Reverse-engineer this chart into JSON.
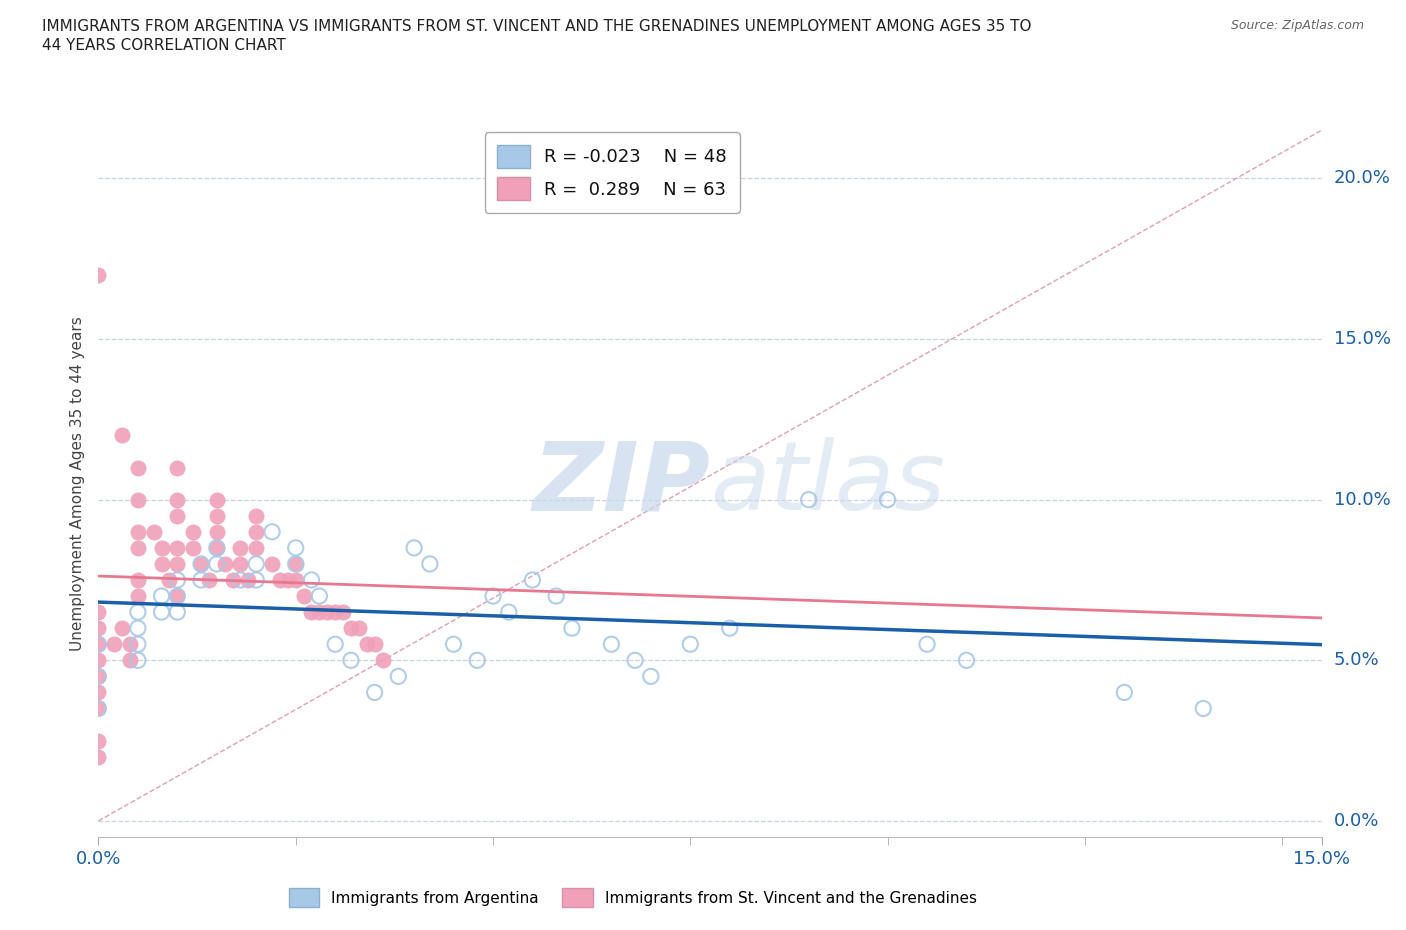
{
  "title": "IMMIGRANTS FROM ARGENTINA VS IMMIGRANTS FROM ST. VINCENT AND THE GRENADINES UNEMPLOYMENT AMONG AGES 35 TO\n44 YEARS CORRELATION CHART",
  "source": "Source: ZipAtlas.com",
  "ylabel_label": "Unemployment Among Ages 35 to 44 years",
  "xlim": [
    0.0,
    0.155
  ],
  "ylim": [
    -0.005,
    0.215
  ],
  "ytick_vals_right": [
    0.0,
    0.05,
    0.1,
    0.15,
    0.2
  ],
  "ytick_labels_right": [
    "0.0%",
    "5.0%",
    "10.0%",
    "15.0%",
    "20.0%"
  ],
  "argentina_color": "#a8c8e8",
  "stv_color": "#f0a0b8",
  "argentina_R": -0.023,
  "argentina_N": 48,
  "stv_R": 0.289,
  "stv_N": 63,
  "argentina_line_color": "#1a5fa8",
  "stv_line_color": "#e87890",
  "diagonal_color": "#e0a0b0",
  "watermark_zip": "ZIP",
  "watermark_atlas": "atlas",
  "argentina_x": [
    0.0,
    0.0,
    0.0,
    0.005,
    0.005,
    0.005,
    0.005,
    0.008,
    0.008,
    0.01,
    0.01,
    0.01,
    0.013,
    0.013,
    0.015,
    0.015,
    0.018,
    0.02,
    0.02,
    0.022,
    0.025,
    0.025,
    0.027,
    0.028,
    0.03,
    0.032,
    0.035,
    0.038,
    0.04,
    0.042,
    0.045,
    0.048,
    0.05,
    0.052,
    0.055,
    0.058,
    0.06,
    0.065,
    0.068,
    0.07,
    0.075,
    0.08,
    0.09,
    0.1,
    0.105,
    0.11,
    0.13,
    0.14
  ],
  "argentina_y": [
    0.055,
    0.045,
    0.035,
    0.065,
    0.06,
    0.055,
    0.05,
    0.07,
    0.065,
    0.075,
    0.07,
    0.065,
    0.08,
    0.075,
    0.085,
    0.08,
    0.075,
    0.08,
    0.075,
    0.09,
    0.085,
    0.08,
    0.075,
    0.07,
    0.055,
    0.05,
    0.04,
    0.045,
    0.085,
    0.08,
    0.055,
    0.05,
    0.07,
    0.065,
    0.075,
    0.07,
    0.06,
    0.055,
    0.05,
    0.045,
    0.055,
    0.06,
    0.1,
    0.1,
    0.055,
    0.05,
    0.04,
    0.035
  ],
  "stv_x": [
    0.0,
    0.0,
    0.0,
    0.0,
    0.0,
    0.0,
    0.0,
    0.0,
    0.0,
    0.0,
    0.002,
    0.003,
    0.003,
    0.004,
    0.004,
    0.005,
    0.005,
    0.005,
    0.005,
    0.005,
    0.005,
    0.007,
    0.008,
    0.008,
    0.009,
    0.01,
    0.01,
    0.01,
    0.01,
    0.01,
    0.01,
    0.012,
    0.012,
    0.013,
    0.014,
    0.015,
    0.015,
    0.015,
    0.015,
    0.016,
    0.017,
    0.018,
    0.018,
    0.019,
    0.02,
    0.02,
    0.02,
    0.022,
    0.023,
    0.024,
    0.025,
    0.025,
    0.026,
    0.027,
    0.028,
    0.029,
    0.03,
    0.031,
    0.032,
    0.033,
    0.034,
    0.035,
    0.036
  ],
  "stv_y": [
    0.17,
    0.065,
    0.06,
    0.055,
    0.05,
    0.045,
    0.04,
    0.035,
    0.025,
    0.02,
    0.055,
    0.12,
    0.06,
    0.055,
    0.05,
    0.11,
    0.1,
    0.09,
    0.085,
    0.075,
    0.07,
    0.09,
    0.085,
    0.08,
    0.075,
    0.11,
    0.1,
    0.095,
    0.085,
    0.08,
    0.07,
    0.09,
    0.085,
    0.08,
    0.075,
    0.1,
    0.095,
    0.09,
    0.085,
    0.08,
    0.075,
    0.085,
    0.08,
    0.075,
    0.095,
    0.09,
    0.085,
    0.08,
    0.075,
    0.075,
    0.08,
    0.075,
    0.07,
    0.065,
    0.065,
    0.065,
    0.065,
    0.065,
    0.06,
    0.06,
    0.055,
    0.055,
    0.05
  ]
}
